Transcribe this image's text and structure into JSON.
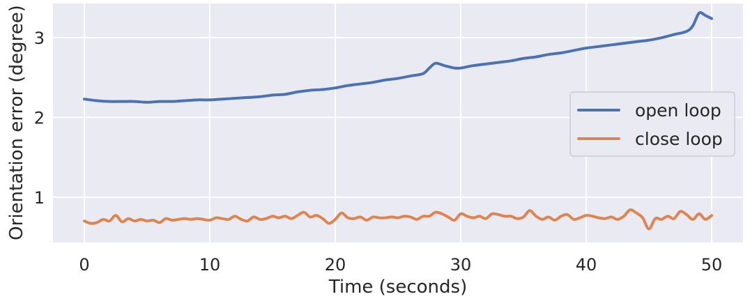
{
  "chart_data": {
    "type": "line",
    "title": "",
    "xlabel": "Time (seconds)",
    "ylabel": "Orientation error (degree)",
    "xlim": [
      -2.5,
      52.5
    ],
    "ylim": [
      0.43,
      3.43
    ],
    "xticks": [
      0,
      10,
      20,
      30,
      40,
      50
    ],
    "yticks": [
      1,
      2,
      3
    ],
    "grid": true,
    "legend_position": "center-right",
    "series": [
      {
        "name": "open loop",
        "color": "#4c72b0",
        "points": [
          [
            0,
            2.23
          ],
          [
            1,
            2.21
          ],
          [
            2,
            2.2
          ],
          [
            3,
            2.2
          ],
          [
            4,
            2.2
          ],
          [
            5,
            2.19
          ],
          [
            6,
            2.2
          ],
          [
            7,
            2.2
          ],
          [
            8,
            2.21
          ],
          [
            9,
            2.22
          ],
          [
            10,
            2.22
          ],
          [
            11,
            2.23
          ],
          [
            12,
            2.24
          ],
          [
            13,
            2.25
          ],
          [
            14,
            2.26
          ],
          [
            15,
            2.28
          ],
          [
            16,
            2.29
          ],
          [
            17,
            2.32
          ],
          [
            18,
            2.34
          ],
          [
            19,
            2.35
          ],
          [
            20,
            2.37
          ],
          [
            21,
            2.4
          ],
          [
            22,
            2.42
          ],
          [
            23,
            2.44
          ],
          [
            24,
            2.47
          ],
          [
            25,
            2.49
          ],
          [
            26,
            2.52
          ],
          [
            27,
            2.55
          ],
          [
            27.5,
            2.62
          ],
          [
            28,
            2.68
          ],
          [
            28.7,
            2.65
          ],
          [
            29.5,
            2.62
          ],
          [
            30,
            2.62
          ],
          [
            31,
            2.65
          ],
          [
            32,
            2.67
          ],
          [
            33,
            2.69
          ],
          [
            34,
            2.71
          ],
          [
            35,
            2.74
          ],
          [
            36,
            2.76
          ],
          [
            37,
            2.79
          ],
          [
            38,
            2.81
          ],
          [
            39,
            2.84
          ],
          [
            40,
            2.87
          ],
          [
            41,
            2.89
          ],
          [
            42,
            2.91
          ],
          [
            43,
            2.93
          ],
          [
            44,
            2.95
          ],
          [
            45,
            2.97
          ],
          [
            46,
            3.0
          ],
          [
            47,
            3.04
          ],
          [
            48,
            3.08
          ],
          [
            48.5,
            3.15
          ],
          [
            49,
            3.31
          ],
          [
            49.5,
            3.28
          ],
          [
            50,
            3.24
          ]
        ]
      },
      {
        "name": "close loop",
        "color": "#dd8452",
        "points": [
          [
            0,
            0.7
          ],
          [
            0.5,
            0.67
          ],
          [
            1,
            0.68
          ],
          [
            1.5,
            0.72
          ],
          [
            2,
            0.7
          ],
          [
            2.5,
            0.77
          ],
          [
            3,
            0.69
          ],
          [
            3.5,
            0.73
          ],
          [
            4,
            0.7
          ],
          [
            4.5,
            0.72
          ],
          [
            5,
            0.7
          ],
          [
            5.5,
            0.71
          ],
          [
            6,
            0.68
          ],
          [
            6.5,
            0.73
          ],
          [
            7,
            0.71
          ],
          [
            7.5,
            0.72
          ],
          [
            8,
            0.73
          ],
          [
            8.5,
            0.72
          ],
          [
            9,
            0.73
          ],
          [
            9.5,
            0.72
          ],
          [
            10,
            0.71
          ],
          [
            10.5,
            0.74
          ],
          [
            11,
            0.73
          ],
          [
            11.5,
            0.72
          ],
          [
            12,
            0.76
          ],
          [
            12.5,
            0.72
          ],
          [
            13,
            0.7
          ],
          [
            13.5,
            0.75
          ],
          [
            14,
            0.72
          ],
          [
            14.5,
            0.73
          ],
          [
            15,
            0.76
          ],
          [
            15.5,
            0.74
          ],
          [
            16,
            0.76
          ],
          [
            16.5,
            0.73
          ],
          [
            17,
            0.77
          ],
          [
            17.5,
            0.81
          ],
          [
            18,
            0.75
          ],
          [
            18.5,
            0.77
          ],
          [
            19,
            0.73
          ],
          [
            19.5,
            0.67
          ],
          [
            20,
            0.72
          ],
          [
            20.5,
            0.8
          ],
          [
            21,
            0.74
          ],
          [
            21.5,
            0.73
          ],
          [
            22,
            0.75
          ],
          [
            22.5,
            0.71
          ],
          [
            23,
            0.75
          ],
          [
            23.5,
            0.74
          ],
          [
            24,
            0.74
          ],
          [
            24.5,
            0.75
          ],
          [
            25,
            0.74
          ],
          [
            25.5,
            0.76
          ],
          [
            26,
            0.75
          ],
          [
            26.5,
            0.72
          ],
          [
            27,
            0.76
          ],
          [
            27.5,
            0.76
          ],
          [
            28,
            0.81
          ],
          [
            28.5,
            0.79
          ],
          [
            29,
            0.75
          ],
          [
            29.5,
            0.71
          ],
          [
            30,
            0.79
          ],
          [
            30.5,
            0.76
          ],
          [
            31,
            0.74
          ],
          [
            31.5,
            0.76
          ],
          [
            32,
            0.73
          ],
          [
            32.5,
            0.79
          ],
          [
            33,
            0.78
          ],
          [
            33.5,
            0.76
          ],
          [
            34,
            0.76
          ],
          [
            34.5,
            0.73
          ],
          [
            35,
            0.75
          ],
          [
            35.5,
            0.83
          ],
          [
            36,
            0.76
          ],
          [
            36.5,
            0.72
          ],
          [
            37,
            0.75
          ],
          [
            37.5,
            0.71
          ],
          [
            38,
            0.76
          ],
          [
            38.5,
            0.78
          ],
          [
            39,
            0.72
          ],
          [
            39.5,
            0.74
          ],
          [
            40,
            0.77
          ],
          [
            40.5,
            0.76
          ],
          [
            41,
            0.74
          ],
          [
            41.5,
            0.73
          ],
          [
            42,
            0.75
          ],
          [
            42.5,
            0.72
          ],
          [
            43,
            0.76
          ],
          [
            43.5,
            0.84
          ],
          [
            44,
            0.8
          ],
          [
            44.5,
            0.74
          ],
          [
            45,
            0.6
          ],
          [
            45.5,
            0.73
          ],
          [
            46,
            0.72
          ],
          [
            46.5,
            0.76
          ],
          [
            47,
            0.73
          ],
          [
            47.5,
            0.82
          ],
          [
            48,
            0.78
          ],
          [
            48.5,
            0.72
          ],
          [
            49,
            0.79
          ],
          [
            49.5,
            0.72
          ],
          [
            50,
            0.77
          ]
        ]
      }
    ]
  }
}
